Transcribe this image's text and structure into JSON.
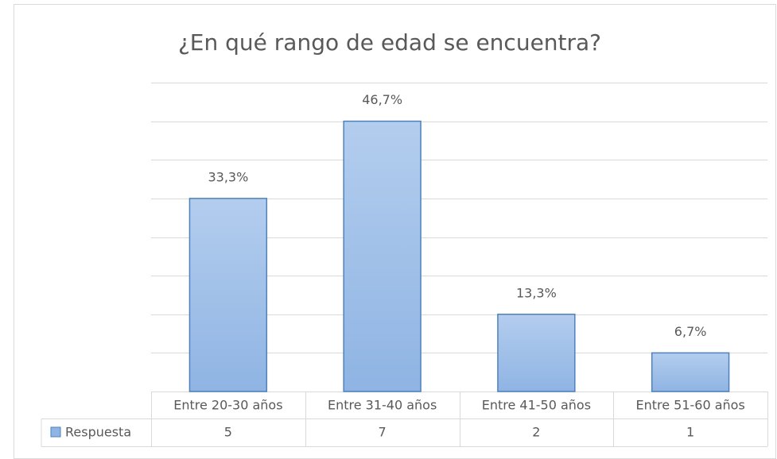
{
  "chart_data": {
    "type": "bar",
    "title": "¿En qué rango de edad se encuentra?",
    "categories": [
      "Entre 20-30 años",
      "Entre 31-40 años",
      "Entre 41-50 años",
      "Entre 51-60 años"
    ],
    "series": [
      {
        "name": "Respuesta",
        "color": "#8fb4e3",
        "values": [
          5,
          7,
          2,
          1
        ]
      }
    ],
    "data_labels": [
      "33,3%",
      "46,7%",
      "13,3%",
      "6,7%"
    ],
    "ylim": [
      0,
      8
    ],
    "yticks": [
      0,
      1,
      2,
      3,
      4,
      5,
      6,
      7,
      8
    ],
    "grid": true
  }
}
